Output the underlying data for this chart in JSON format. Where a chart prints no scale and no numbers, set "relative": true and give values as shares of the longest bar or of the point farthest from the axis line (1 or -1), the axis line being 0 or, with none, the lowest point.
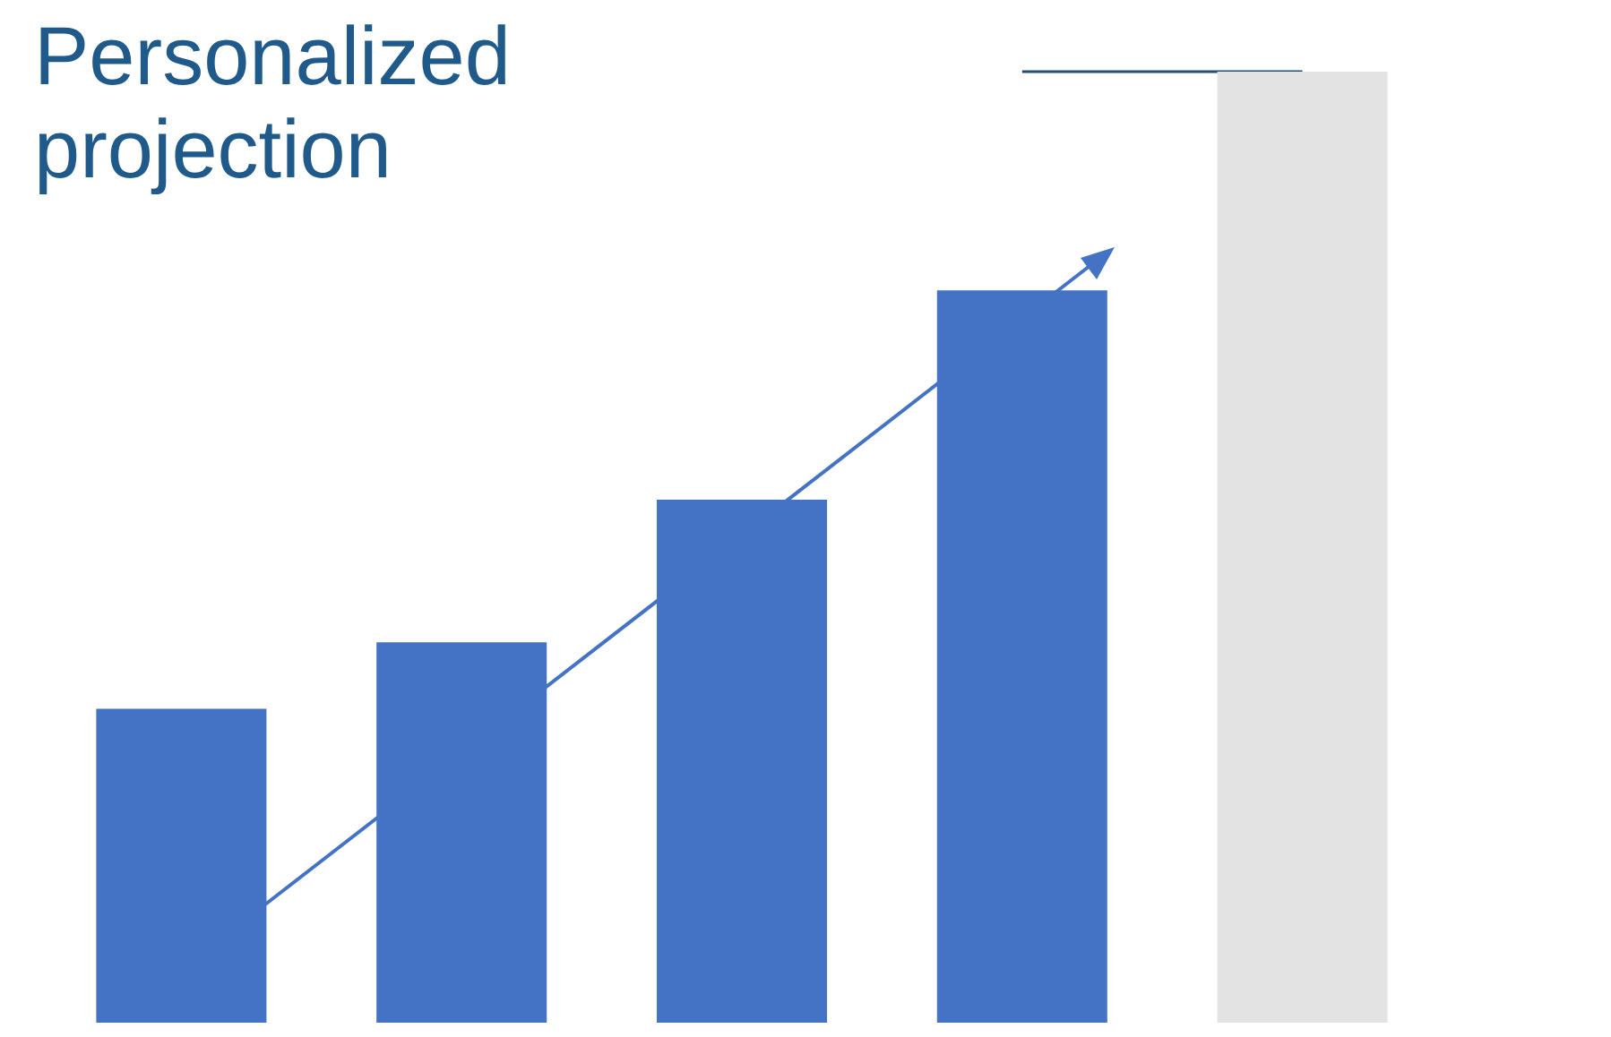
{
  "chart_data": {
    "type": "bar",
    "title": "Personalized projection",
    "relative": true,
    "categories": [
      null,
      null,
      null,
      null,
      null
    ],
    "values": [
      0.33,
      0.4,
      0.55,
      0.77,
      1
    ],
    "colors": [
      "#4472c4",
      "#4472c4",
      "#4472c4",
      "#4472c4",
      "#e3e3e3"
    ],
    "ref_lines": [
      {
        "axis": "y",
        "value": 1,
        "color": "#1f4e79"
      }
    ]
  }
}
